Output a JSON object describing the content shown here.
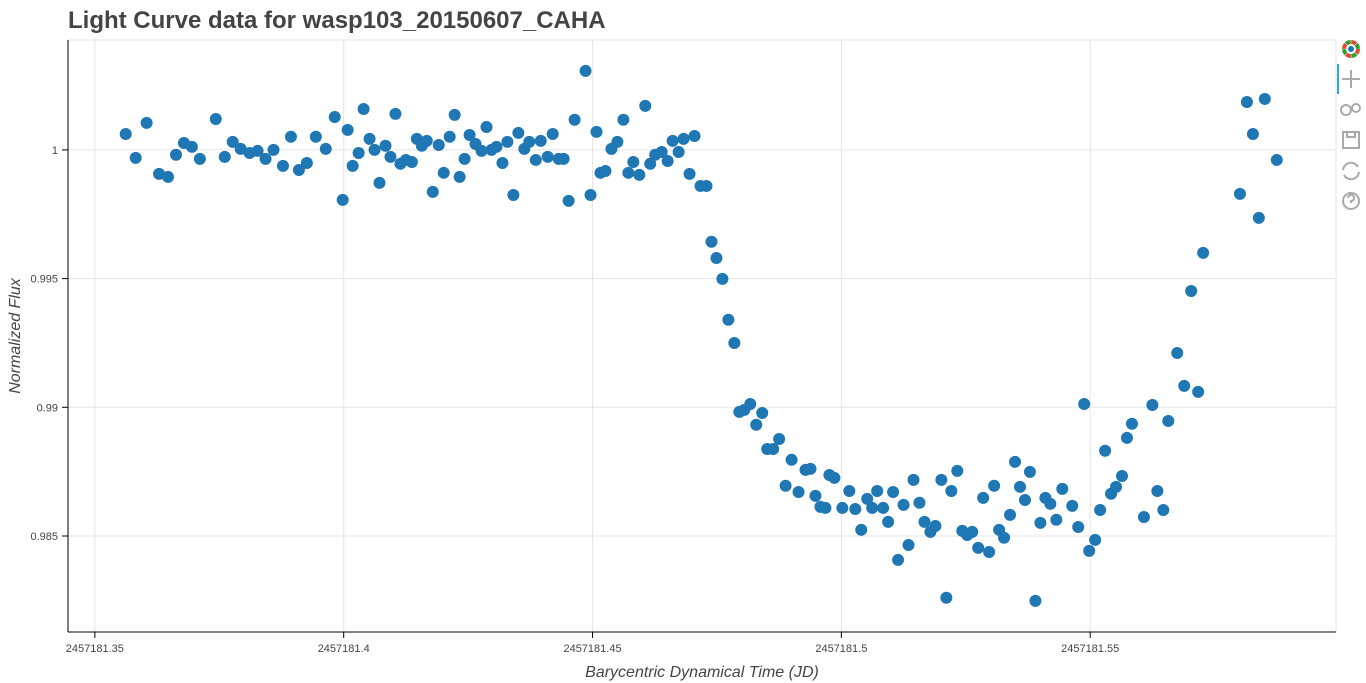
{
  "chart_data": {
    "type": "scatter",
    "title": "Light Curve data for wasp103_20150607_CAHA",
    "x_label": "Barycentric Dynamical Time (JD)",
    "y_label": "Normalized Flux",
    "xlim": [
      2457181.3446,
      2457181.5994
    ],
    "ylim": [
      0.98127,
      1.00427
    ],
    "xticks": [
      2457181.35,
      2457181.4,
      2457181.45,
      2457181.5,
      2457181.55
    ],
    "yticks": [
      0.985,
      0.99,
      0.995,
      1
    ],
    "grid": true,
    "series": [
      {
        "color": "#1f77b4",
        "x": [
          2457181.3562,
          2457181.3582,
          2457181.3604,
          2457181.3629,
          2457181.3647,
          2457181.3663,
          2457181.3679,
          2457181.3695,
          2457181.3711,
          2457181.3743,
          2457181.3761,
          2457181.3777,
          2457181.3793,
          2457181.3811,
          2457181.3827,
          2457181.3843,
          2457181.3859,
          2457181.3878,
          2457181.3894,
          2457181.391,
          2457181.3926,
          2457181.3944,
          2457181.3964,
          2457181.3982,
          2457181.3998,
          2457181.4008,
          2457181.4018,
          2457181.403,
          2457181.404,
          2457181.4052,
          2457181.4062,
          2457181.4072,
          2457181.4084,
          2457181.4094,
          2457181.4104,
          2457181.4114,
          2457181.4125,
          2457181.4137,
          2457181.4147,
          2457181.4157,
          2457181.4167,
          2457181.4179,
          2457181.4191,
          2457181.4201,
          2457181.4213,
          2457181.4223,
          2457181.4233,
          2457181.4243,
          2457181.4253,
          2457181.4265,
          2457181.4277,
          2457181.4287,
          2457181.4297,
          2457181.4307,
          2457181.4319,
          2457181.4329,
          2457181.4341,
          2457181.4351,
          2457181.4363,
          2457181.4373,
          2457181.4386,
          2457181.4396,
          2457181.441,
          2457181.442,
          2457181.4432,
          2457181.4442,
          2457181.4452,
          2457181.4464,
          2457181.4486,
          2457181.4496,
          2457181.4508,
          2457181.4516,
          2457181.4526,
          2457181.4538,
          2457181.455,
          2457181.4562,
          2457181.4572,
          2457181.4582,
          2457181.4594,
          2457181.4606,
          2457181.4616,
          2457181.4626,
          2457181.4639,
          2457181.4651,
          2457181.4661,
          2457181.4673,
          2457181.4683,
          2457181.4695,
          2457181.4705,
          2457181.4717,
          2457181.4729,
          2457181.4739,
          2457181.4749,
          2457181.4761,
          2457181.4773,
          2457181.4785,
          2457181.4795,
          2457181.4805,
          2457181.4817,
          2457181.4829,
          2457181.4841,
          2457181.4851,
          2457181.4863,
          2457181.4875,
          2457181.4888,
          2457181.49,
          2457181.4914,
          2457181.4928,
          2457181.4938,
          2457181.4948,
          2457181.4958,
          2457181.4968,
          2457181.4976,
          2457181.4986,
          2457181.5002,
          2457181.5016,
          2457181.5028,
          2457181.504,
          2457181.5052,
          2457181.5062,
          2457181.5072,
          2457181.5084,
          2457181.5094,
          2457181.5104,
          2457181.5114,
          2457181.5125,
          2457181.5135,
          2457181.5145,
          2457181.5157,
          2457181.5167,
          2457181.5179,
          2457181.5189,
          2457181.5201,
          2457181.5211,
          2457181.5221,
          2457181.5233,
          2457181.5243,
          2457181.5253,
          2457181.5263,
          2457181.5275,
          2457181.5285,
          2457181.5297,
          2457181.5307,
          2457181.5317,
          2457181.5327,
          2457181.5339,
          2457181.5349,
          2457181.5359,
          2457181.5369,
          2457181.5379,
          2457181.539,
          2457181.54,
          2457181.541,
          2457181.542,
          2457181.5432,
          2457181.5444,
          2457181.5464,
          2457181.5476,
          2457181.5488,
          2457181.5498,
          2457181.551,
          2457181.552,
          2457181.553,
          2457181.5542,
          2457181.5552,
          2457181.5564,
          2457181.5574,
          2457181.5584,
          2457181.5608,
          2457181.5625,
          2457181.5635,
          2457181.5647,
          2457181.5657,
          2457181.5675,
          2457181.5689,
          2457181.5703,
          2457181.5717,
          2457181.5727,
          2457181.5801,
          2457181.5815,
          2457181.5827,
          2457181.5839,
          2457181.5851,
          2457181.5875
        ],
        "values": [
          1.00062,
          0.99969,
          1.00105,
          0.99907,
          0.99895,
          0.99981,
          1.00027,
          1.00012,
          0.99965,
          1.0012,
          0.99973,
          1.00031,
          1.00004,
          0.99988,
          0.99996,
          0.99965,
          1,
          0.99938,
          1.00051,
          0.99922,
          0.99949,
          1.00051,
          1.00004,
          1.00128,
          0.99806,
          1.00078,
          0.99938,
          0.99988,
          1.00159,
          1.00043,
          1,
          0.99872,
          1.00016,
          0.99973,
          1.0014,
          0.99946,
          0.99961,
          0.99953,
          1.00043,
          1.00016,
          1.00035,
          0.99837,
          1.00019,
          0.99911,
          1.00051,
          1.00136,
          0.99895,
          0.99965,
          1.00058,
          1.00023,
          0.99996,
          1.00089,
          1,
          1.00012,
          0.99949,
          1.00031,
          0.99825,
          1.00066,
          1.00004,
          1.00031,
          0.99961,
          1.00035,
          0.99973,
          1.00062,
          0.99965,
          0.99965,
          0.99802,
          1.00117,
          1.00307,
          0.99825,
          1.0007,
          0.99911,
          0.99918,
          1.00004,
          1.00031,
          1.00117,
          0.99911,
          0.99953,
          0.99903,
          1.00171,
          0.99946,
          0.99981,
          0.99992,
          0.99957,
          1.00035,
          0.99992,
          1.00043,
          0.99907,
          1.00054,
          0.9986,
          0.9986,
          0.99643,
          0.9958,
          0.99499,
          0.9934,
          0.9925,
          0.98982,
          0.9899,
          0.99013,
          0.98932,
          0.98978,
          0.98838,
          0.98838,
          0.98877,
          0.98695,
          0.98796,
          0.98671,
          0.98757,
          0.98761,
          0.98656,
          0.98613,
          0.98609,
          0.98737,
          0.98726,
          0.98609,
          0.98675,
          0.98605,
          0.98524,
          0.98644,
          0.98609,
          0.98675,
          0.98609,
          0.98555,
          0.98671,
          0.98407,
          0.98621,
          0.98465,
          0.98718,
          0.98629,
          0.98555,
          0.98516,
          0.98539,
          0.98718,
          0.9826,
          0.98675,
          0.98753,
          0.9852,
          0.98504,
          0.98516,
          0.98454,
          0.98648,
          0.98438,
          0.98695,
          0.98524,
          0.98493,
          0.98582,
          0.98788,
          0.98691,
          0.9864,
          0.98749,
          0.98248,
          0.98551,
          0.98648,
          0.98625,
          0.98563,
          0.98683,
          0.98617,
          0.98535,
          0.99013,
          0.98442,
          0.98485,
          0.98601,
          0.98831,
          0.98664,
          0.98691,
          0.98733,
          0.98881,
          0.98936,
          0.98574,
          0.99009,
          0.98675,
          0.98601,
          0.98947,
          0.99211,
          0.99083,
          0.99452,
          0.9906,
          0.996,
          0.99829,
          1.00186,
          1.00062,
          0.99736,
          1.00198,
          0.99961
        ]
      }
    ]
  }
}
